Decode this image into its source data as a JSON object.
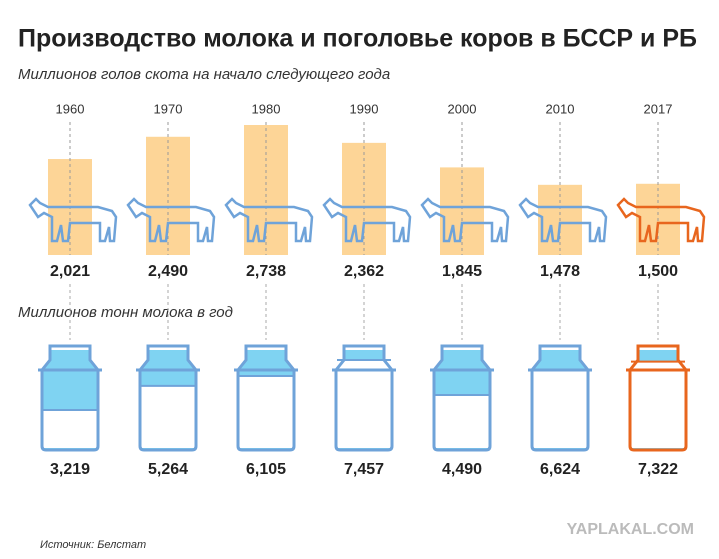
{
  "title": "Производство молока и поголовье коров в БССР и РБ",
  "source": "Источник: Белстат",
  "watermark": "YAPLAKAL.COM",
  "chart_data": [
    {
      "type": "bar",
      "subtitle": "Миллионов голов скота на начало следующего года",
      "categories": [
        "1960",
        "1970",
        "1980",
        "1990",
        "2000",
        "2010",
        "2017"
      ],
      "values": [
        2.021,
        2.49,
        2.738,
        2.362,
        1.845,
        1.478,
        1.5
      ],
      "value_labels": [
        "2,021",
        "2,490",
        "2,738",
        "2,362",
        "1,845",
        "1,478",
        "1,500"
      ],
      "color": "#fdd597",
      "outline_color": "#6fa3d9",
      "highlight_color": "#e8661e"
    },
    {
      "type": "jar",
      "subtitle": "Миллионов тонн молока в год",
      "values": [
        3.219,
        5.264,
        6.105,
        7.457,
        4.49,
        6.624,
        7.322
      ],
      "value_labels": [
        "3,219",
        "5,264",
        "6,105",
        "7,457",
        "4,490",
        "6,624",
        "7,322"
      ],
      "color": "#7fd3f2",
      "outline_color": "#6fa3d9",
      "highlight_color": "#e8661e"
    }
  ]
}
